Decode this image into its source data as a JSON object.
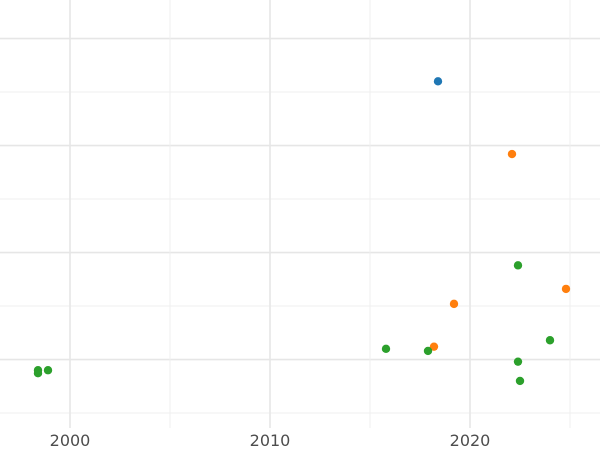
{
  "chart_data": {
    "type": "scatter",
    "title": "",
    "xlabel": "",
    "ylabel": "",
    "xlim": [
      1996.5,
      2026.5
    ],
    "ylim": [
      0,
      100
    ],
    "x_major_ticks": [
      2000,
      2010,
      2020
    ],
    "x_tick_labels": [
      "2000",
      "2010",
      "2020"
    ],
    "x_minor_ticks": [
      2005,
      2015,
      2025
    ],
    "y_major_gridlines": [
      16,
      41,
      66,
      91
    ],
    "y_minor_gridlines": [
      3.5,
      28.5,
      53.5,
      78.5
    ],
    "grid": true,
    "legend": "none",
    "series": [
      {
        "color": "#1f77b4",
        "points": [
          {
            "x": 2018.4,
            "y": 81
          }
        ]
      },
      {
        "color": "#ff7f0e",
        "points": [
          {
            "x": 2022.1,
            "y": 64
          },
          {
            "x": 2024.8,
            "y": 32.5
          },
          {
            "x": 2019.2,
            "y": 29
          },
          {
            "x": 2018.2,
            "y": 19
          }
        ]
      },
      {
        "color": "#2ca02c",
        "points": [
          {
            "x": 2022.4,
            "y": 38
          },
          {
            "x": 2024.0,
            "y": 20.5
          },
          {
            "x": 2015.8,
            "y": 18.5
          },
          {
            "x": 2017.9,
            "y": 18
          },
          {
            "x": 2022.4,
            "y": 15.5
          },
          {
            "x": 2022.5,
            "y": 11
          },
          {
            "x": 1998.4,
            "y": 13.5
          },
          {
            "x": 1998.9,
            "y": 13.5
          },
          {
            "x": 1998.4,
            "y": 12.8
          }
        ]
      }
    ]
  }
}
